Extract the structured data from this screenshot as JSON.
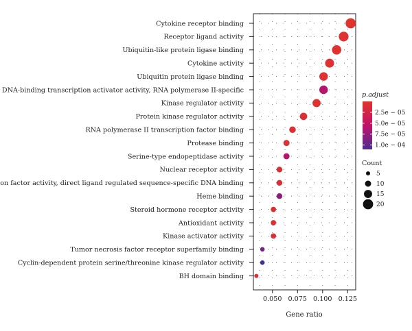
{
  "chart_data": {
    "type": "scatter",
    "xlabel": "Gene ratio",
    "x_ticks": [
      0.05,
      0.075,
      0.1,
      0.125
    ],
    "x_tick_labels": [
      "0.050",
      "0.075",
      "0.100",
      "0.125"
    ],
    "xlim": [
      0.031,
      0.133
    ],
    "grid": "dotted",
    "categories": [
      "Cytokine receptor binding",
      "Receptor ligand activity",
      "Ubiquitin-like protein ligase binding",
      "Cytokine activity",
      "Ubiquitin protein ligase binding",
      "DNA-binding transcription activator activity, RNA polymerase II-specific",
      "Kinase regulator activity",
      "Protein kinase regulator activity",
      "RNA polymerase II transcription factor binding",
      "Protease binding",
      "Serine-type endopeptidase activity",
      "Nuclear receptor activity",
      "Transcription factor activity, direct ligand regulated sequence-specific DNA binding",
      "Heme binding",
      "Steroid hormone receptor activity",
      "Antioxidant activity",
      "Kinase activator activity",
      "Tumor necrosis factor receptor superfamily binding",
      "Cyclin-dependent protein serine/threonine kinase regulator activity",
      "BH domain binding"
    ],
    "gene_ratio": [
      0.128,
      0.121,
      0.114,
      0.107,
      0.101,
      0.101,
      0.094,
      0.081,
      0.07,
      0.064,
      0.064,
      0.057,
      0.057,
      0.057,
      0.051,
      0.051,
      0.051,
      0.04,
      0.04,
      0.034
    ],
    "count": [
      20,
      19,
      18,
      17,
      16,
      16,
      15,
      13,
      11,
      10,
      10,
      9,
      9,
      9,
      8,
      8,
      8,
      6,
      6,
      5
    ],
    "p_adjust": [
      2e-06,
      4e-06,
      3e-06,
      6e-06,
      5e-06,
      6e-05,
      6e-06,
      8e-06,
      9e-06,
      8e-06,
      6e-05,
      9e-06,
      9e-06,
      8e-05,
      9e-06,
      8e-06,
      9e-06,
      9e-05,
      0.00011,
      9e-06
    ],
    "color_legend": {
      "title": "p.adjust",
      "range": [
        0.0,
        0.00011
      ],
      "ticks": [
        2.5e-05,
        5e-05,
        7.5e-05,
        0.0001
      ],
      "tick_labels": [
        "2.5e − 05",
        "5.0e − 05",
        "7.5e − 05",
        "1.0e − 04"
      ],
      "low_color": "#e0352b",
      "mid_color": "#c0136a",
      "high_color": "#4b2e8f"
    },
    "size_legend": {
      "title": "Count",
      "values": [
        5,
        10,
        15,
        20
      ],
      "labels": [
        "5",
        "10",
        "15",
        "20"
      ]
    }
  }
}
